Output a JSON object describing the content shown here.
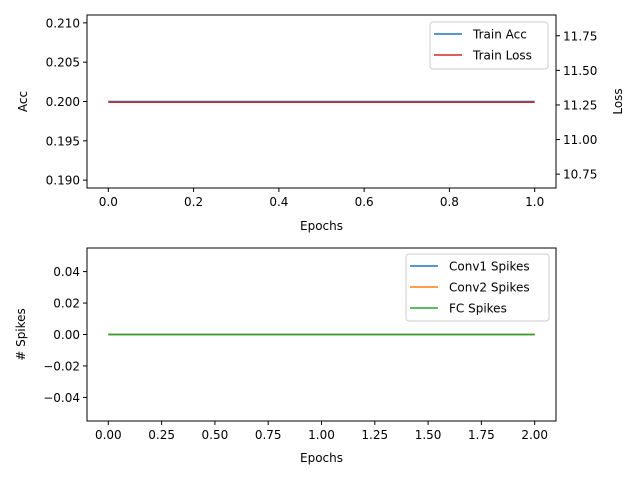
{
  "chart_data": [
    {
      "type": "line",
      "xlabel": "Epochs",
      "ylabel": "Acc",
      "y2label": "Loss",
      "xlim": [
        -0.05,
        1.05
      ],
      "ylim": [
        0.189,
        0.211
      ],
      "y2lim": [
        10.65,
        11.9
      ],
      "x_ticks": [
        "0.0",
        "0.2",
        "0.4",
        "0.6",
        "0.8",
        "1.0"
      ],
      "y_ticks": [
        "0.190",
        "0.195",
        "0.200",
        "0.205",
        "0.210"
      ],
      "y2_ticks": [
        "10.75",
        "11.00",
        "11.25",
        "11.50",
        "11.75"
      ],
      "grid": false,
      "legend_position": "top-right",
      "series": [
        {
          "name": "Train Acc",
          "axis": "left",
          "color": "#1f77b4",
          "x": [
            0,
            1
          ],
          "values": [
            0.2,
            0.2
          ]
        },
        {
          "name": "Train Loss",
          "axis": "right",
          "color": "#d62728",
          "x": [
            0,
            1
          ],
          "values": [
            11.27,
            11.27
          ]
        }
      ]
    },
    {
      "type": "line",
      "xlabel": "Epochs",
      "ylabel": "# Spikes",
      "xlim": [
        -0.1,
        2.1
      ],
      "ylim": [
        -0.055,
        0.055
      ],
      "x_ticks": [
        "0.00",
        "0.25",
        "0.50",
        "0.75",
        "1.00",
        "1.25",
        "1.50",
        "1.75",
        "2.00"
      ],
      "y_ticks": [
        "−0.04",
        "−0.02",
        "0.00",
        "0.02",
        "0.04"
      ],
      "grid": false,
      "legend_position": "top-right",
      "series": [
        {
          "name": "Conv1 Spikes",
          "color": "#1f77b4",
          "x": [
            0,
            1,
            2
          ],
          "values": [
            0,
            0,
            0
          ]
        },
        {
          "name": "Conv2 Spikes",
          "color": "#ff7f0e",
          "x": [
            0,
            1,
            2
          ],
          "values": [
            0,
            0,
            0
          ]
        },
        {
          "name": "FC Spikes",
          "color": "#2ca02c",
          "x": [
            0,
            1,
            2
          ],
          "values": [
            0,
            0,
            0
          ]
        }
      ]
    }
  ]
}
